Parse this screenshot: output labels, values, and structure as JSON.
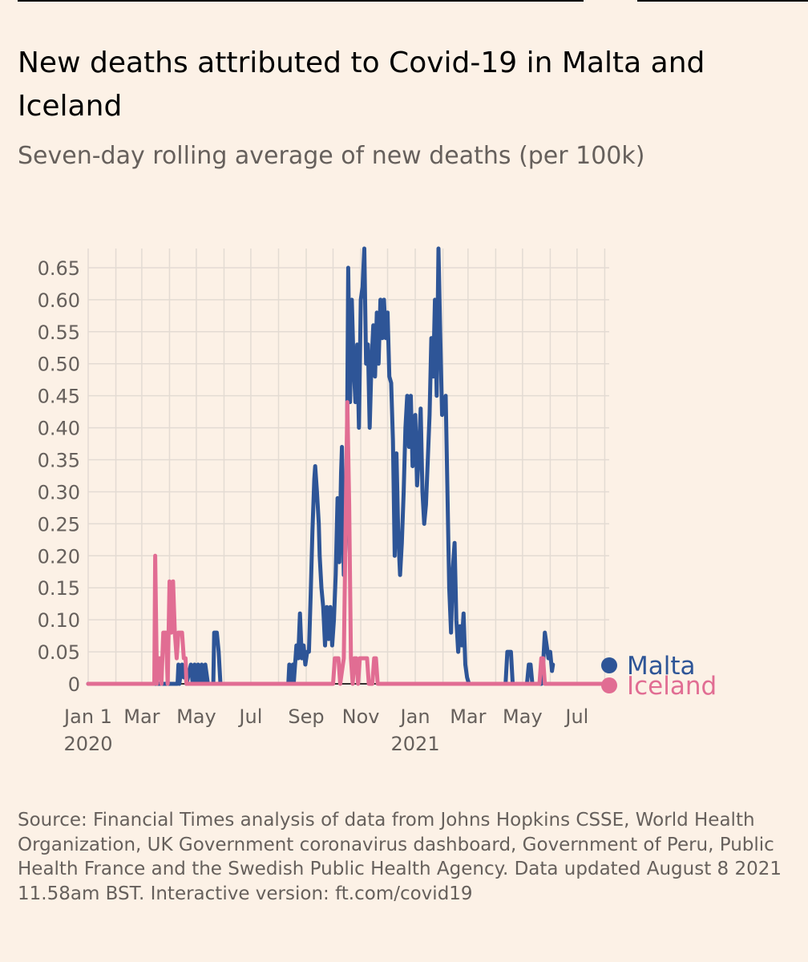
{
  "title": "New deaths attributed to Covid-19 in Malta and Iceland",
  "subtitle": "Seven-day rolling average of new deaths (per 100k)",
  "source": "Source: Financial Times analysis of data from Johns Hopkins CSSE, World Health Organization, UK Government coronavirus dashboard, Government of Peru, Public Health France and the Swedish Public Health Agency. Data updated August 8 2021 11.58am BST. Interactive version: ft.com/covid19",
  "chart_data": {
    "type": "line",
    "xlabel": "",
    "ylabel": "",
    "x_range": [
      "2020-01-01",
      "2021-08-06"
    ],
    "ylim": [
      0,
      0.68
    ],
    "grid": true,
    "legend": "right-end-labels",
    "y_ticks": [
      {
        "value": 0,
        "label": "0"
      },
      {
        "value": 0.05,
        "label": "0.05"
      },
      {
        "value": 0.1,
        "label": "0.10"
      },
      {
        "value": 0.15,
        "label": "0.15"
      },
      {
        "value": 0.2,
        "label": "0.20"
      },
      {
        "value": 0.25,
        "label": "0.25"
      },
      {
        "value": 0.3,
        "label": "0.30"
      },
      {
        "value": 0.35,
        "label": "0.35"
      },
      {
        "value": 0.4,
        "label": "0.40"
      },
      {
        "value": 0.45,
        "label": "0.45"
      },
      {
        "value": 0.5,
        "label": "0.50"
      },
      {
        "value": 0.55,
        "label": "0.55"
      },
      {
        "value": 0.6,
        "label": "0.60"
      },
      {
        "value": 0.65,
        "label": "0.65"
      }
    ],
    "x_ticks": [
      {
        "date": "2020-01-01",
        "label": "Jan 1",
        "sublabel": "2020"
      },
      {
        "date": "2020-03-01",
        "label": "Mar",
        "sublabel": ""
      },
      {
        "date": "2020-05-01",
        "label": "May",
        "sublabel": ""
      },
      {
        "date": "2020-07-01",
        "label": "Jul",
        "sublabel": ""
      },
      {
        "date": "2020-09-01",
        "label": "Sep",
        "sublabel": ""
      },
      {
        "date": "2020-11-01",
        "label": "Nov",
        "sublabel": ""
      },
      {
        "date": "2021-01-01",
        "label": "Jan",
        "sublabel": "2021"
      },
      {
        "date": "2021-03-01",
        "label": "Mar",
        "sublabel": ""
      },
      {
        "date": "2021-05-01",
        "label": "May",
        "sublabel": ""
      },
      {
        "date": "2021-07-01",
        "label": "Jul",
        "sublabel": ""
      }
    ],
    "series": [
      {
        "name": "Malta",
        "color": "#2e5597",
        "points": [
          [
            "2020-01-01",
            0
          ],
          [
            "2020-04-10",
            0
          ],
          [
            "2020-04-11",
            0.03
          ],
          [
            "2020-04-12",
            0
          ],
          [
            "2020-04-15",
            0.03
          ],
          [
            "2020-04-17",
            0.01
          ],
          [
            "2020-04-19",
            0.03
          ],
          [
            "2020-04-20",
            0
          ],
          [
            "2020-04-25",
            0.03
          ],
          [
            "2020-04-27",
            0
          ],
          [
            "2020-04-29",
            0.03
          ],
          [
            "2020-05-01",
            0
          ],
          [
            "2020-05-03",
            0.03
          ],
          [
            "2020-05-05",
            0
          ],
          [
            "2020-05-07",
            0.03
          ],
          [
            "2020-05-09",
            0
          ],
          [
            "2020-05-11",
            0.03
          ],
          [
            "2020-05-14",
            0
          ],
          [
            "2020-05-20",
            0
          ],
          [
            "2020-05-21",
            0.08
          ],
          [
            "2020-05-24",
            0.08
          ],
          [
            "2020-05-26",
            0.05
          ],
          [
            "2020-05-28",
            0
          ],
          [
            "2020-08-12",
            0
          ],
          [
            "2020-08-13",
            0.03
          ],
          [
            "2020-08-15",
            0
          ],
          [
            "2020-08-17",
            0.03
          ],
          [
            "2020-08-18",
            0
          ],
          [
            "2020-08-21",
            0.06
          ],
          [
            "2020-08-23",
            0.04
          ],
          [
            "2020-08-25",
            0.11
          ],
          [
            "2020-08-27",
            0.04
          ],
          [
            "2020-08-29",
            0.06
          ],
          [
            "2020-08-31",
            0.03
          ],
          [
            "2020-09-02",
            0.05
          ],
          [
            "2020-09-04",
            0.05
          ],
          [
            "2020-09-06",
            0.14
          ],
          [
            "2020-09-08",
            0.24
          ],
          [
            "2020-09-10",
            0.32
          ],
          [
            "2020-09-11",
            0.34
          ],
          [
            "2020-09-13",
            0.3
          ],
          [
            "2020-09-15",
            0.25
          ],
          [
            "2020-09-16",
            0.2
          ],
          [
            "2020-09-18",
            0.15
          ],
          [
            "2020-09-20",
            0.12
          ],
          [
            "2020-09-22",
            0.06
          ],
          [
            "2020-09-24",
            0.12
          ],
          [
            "2020-09-26",
            0.07
          ],
          [
            "2020-09-28",
            0.12
          ],
          [
            "2020-09-30",
            0.06
          ],
          [
            "2020-10-02",
            0.1
          ],
          [
            "2020-10-04",
            0.17
          ],
          [
            "2020-10-06",
            0.29
          ],
          [
            "2020-10-08",
            0.19
          ],
          [
            "2020-10-10",
            0.33
          ],
          [
            "2020-10-11",
            0.37
          ],
          [
            "2020-10-13",
            0.17
          ],
          [
            "2020-10-16",
            0.24
          ],
          [
            "2020-10-18",
            0.65
          ],
          [
            "2020-10-20",
            0.44
          ],
          [
            "2020-10-22",
            0.6
          ],
          [
            "2020-10-24",
            0.5
          ],
          [
            "2020-10-26",
            0.44
          ],
          [
            "2020-10-28",
            0.53
          ],
          [
            "2020-10-30",
            0.4
          ],
          [
            "2020-11-01",
            0.6
          ],
          [
            "2020-11-03",
            0.62
          ],
          [
            "2020-11-05",
            0.68
          ],
          [
            "2020-11-07",
            0.5
          ],
          [
            "2020-11-09",
            0.53
          ],
          [
            "2020-11-11",
            0.4
          ],
          [
            "2020-11-13",
            0.5
          ],
          [
            "2020-11-15",
            0.56
          ],
          [
            "2020-11-17",
            0.48
          ],
          [
            "2020-11-19",
            0.58
          ],
          [
            "2020-11-21",
            0.5
          ],
          [
            "2020-11-23",
            0.6
          ],
          [
            "2020-11-25",
            0.54
          ],
          [
            "2020-11-27",
            0.6
          ],
          [
            "2020-11-29",
            0.54
          ],
          [
            "2020-12-01",
            0.58
          ],
          [
            "2020-12-03",
            0.48
          ],
          [
            "2020-12-05",
            0.47
          ],
          [
            "2020-12-07",
            0.38
          ],
          [
            "2020-12-09",
            0.2
          ],
          [
            "2020-12-11",
            0.36
          ],
          [
            "2020-12-13",
            0.23
          ],
          [
            "2020-12-15",
            0.17
          ],
          [
            "2020-12-17",
            0.22
          ],
          [
            "2020-12-19",
            0.3
          ],
          [
            "2020-12-21",
            0.4
          ],
          [
            "2020-12-23",
            0.45
          ],
          [
            "2020-12-25",
            0.37
          ],
          [
            "2020-12-27",
            0.45
          ],
          [
            "2020-12-29",
            0.34
          ],
          [
            "2021-01-01",
            0.42
          ],
          [
            "2021-01-03",
            0.31
          ],
          [
            "2021-01-05",
            0.36
          ],
          [
            "2021-01-07",
            0.43
          ],
          [
            "2021-01-09",
            0.3
          ],
          [
            "2021-01-11",
            0.25
          ],
          [
            "2021-01-13",
            0.28
          ],
          [
            "2021-01-15",
            0.35
          ],
          [
            "2021-01-17",
            0.42
          ],
          [
            "2021-01-19",
            0.54
          ],
          [
            "2021-01-21",
            0.48
          ],
          [
            "2021-01-23",
            0.6
          ],
          [
            "2021-01-25",
            0.45
          ],
          [
            "2021-01-27",
            0.68
          ],
          [
            "2021-01-29",
            0.54
          ],
          [
            "2021-01-31",
            0.42
          ],
          [
            "2021-02-02",
            0.43
          ],
          [
            "2021-02-04",
            0.45
          ],
          [
            "2021-02-06",
            0.3
          ],
          [
            "2021-02-08",
            0.15
          ],
          [
            "2021-02-10",
            0.08
          ],
          [
            "2021-02-12",
            0.18
          ],
          [
            "2021-02-14",
            0.22
          ],
          [
            "2021-02-16",
            0.1
          ],
          [
            "2021-02-18",
            0.05
          ],
          [
            "2021-02-20",
            0.09
          ],
          [
            "2021-02-22",
            0.06
          ],
          [
            "2021-02-24",
            0.11
          ],
          [
            "2021-02-26",
            0.03
          ],
          [
            "2021-02-28",
            0.01
          ],
          [
            "2021-03-02",
            0
          ],
          [
            "2021-04-12",
            0
          ],
          [
            "2021-04-14",
            0.05
          ],
          [
            "2021-04-18",
            0.05
          ],
          [
            "2021-04-20",
            0
          ],
          [
            "2021-05-06",
            0
          ],
          [
            "2021-05-08",
            0.03
          ],
          [
            "2021-05-10",
            0.03
          ],
          [
            "2021-05-12",
            0
          ],
          [
            "2021-05-22",
            0
          ],
          [
            "2021-05-24",
            0.03
          ],
          [
            "2021-05-26",
            0.08
          ],
          [
            "2021-05-28",
            0.06
          ],
          [
            "2021-05-30",
            0.04
          ],
          [
            "2021-06-01",
            0.05
          ],
          [
            "2021-06-03",
            0.02
          ],
          [
            "2021-06-04",
            0.03
          ]
        ]
      },
      {
        "name": "Iceland",
        "color": "#e16d93",
        "points": [
          [
            "2020-01-01",
            0
          ],
          [
            "2020-03-15",
            0
          ],
          [
            "2020-03-16",
            0.2
          ],
          [
            "2020-03-18",
            0
          ],
          [
            "2020-03-19",
            0.04
          ],
          [
            "2020-03-21",
            0.04
          ],
          [
            "2020-03-23",
            0
          ],
          [
            "2020-03-25",
            0.08
          ],
          [
            "2020-03-28",
            0.08
          ],
          [
            "2020-03-30",
            0.0
          ],
          [
            "2020-04-01",
            0.16
          ],
          [
            "2020-04-03",
            0.08
          ],
          [
            "2020-04-05",
            0.16
          ],
          [
            "2020-04-07",
            0.08
          ],
          [
            "2020-04-09",
            0.04
          ],
          [
            "2020-04-11",
            0.08
          ],
          [
            "2020-04-15",
            0.08
          ],
          [
            "2020-04-17",
            0.04
          ],
          [
            "2020-04-19",
            0.04
          ],
          [
            "2020-04-20",
            0
          ],
          [
            "2020-10-01",
            0
          ],
          [
            "2020-10-03",
            0.04
          ],
          [
            "2020-10-07",
            0.04
          ],
          [
            "2020-10-09",
            0
          ],
          [
            "2020-10-13",
            0.04
          ],
          [
            "2020-10-15",
            0.24
          ],
          [
            "2020-10-17",
            0.44
          ],
          [
            "2020-10-19",
            0.28
          ],
          [
            "2020-10-21",
            0.04
          ],
          [
            "2020-10-23",
            0
          ],
          [
            "2020-10-25",
            0.04
          ],
          [
            "2020-10-27",
            0.04
          ],
          [
            "2020-10-29",
            0
          ],
          [
            "2020-10-31",
            0.04
          ],
          [
            "2020-11-08",
            0.04
          ],
          [
            "2020-11-10",
            0
          ],
          [
            "2020-11-14",
            0
          ],
          [
            "2020-11-16",
            0.04
          ],
          [
            "2020-11-18",
            0.04
          ],
          [
            "2020-11-20",
            0
          ],
          [
            "2021-05-20",
            0
          ],
          [
            "2021-05-22",
            0.04
          ],
          [
            "2021-05-24",
            0.04
          ],
          [
            "2021-05-26",
            0
          ],
          [
            "2021-08-05",
            0
          ]
        ]
      }
    ]
  }
}
